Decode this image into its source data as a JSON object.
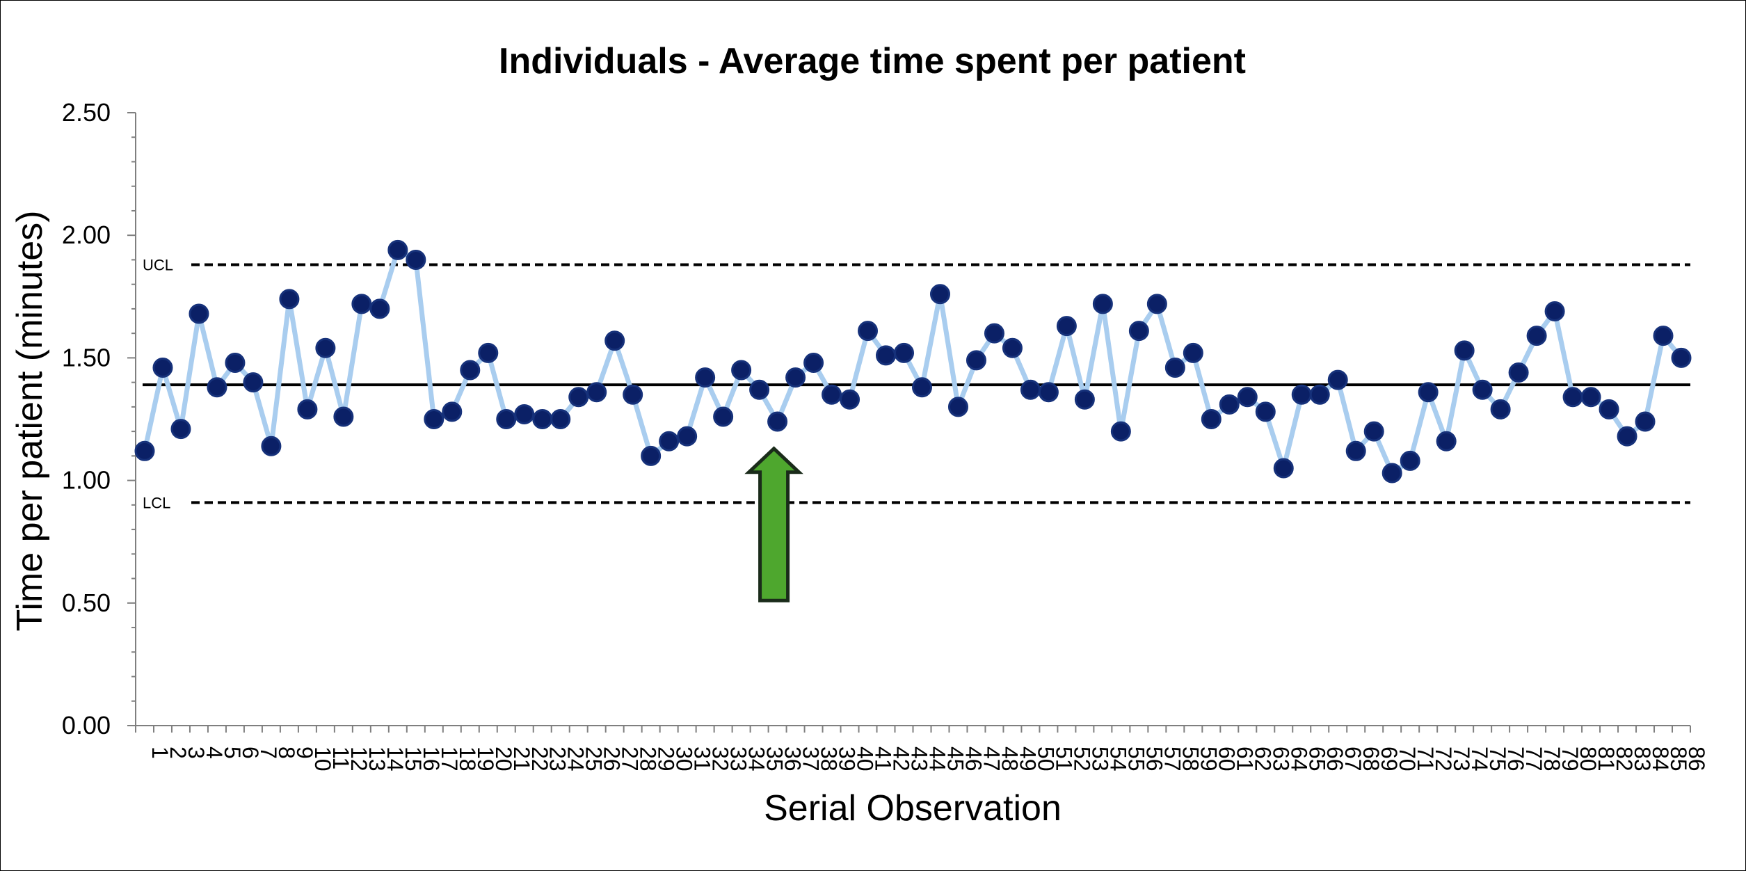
{
  "chart_data": {
    "type": "line",
    "title": "Individuals - Average time spent per patient",
    "xlabel": "Serial Observation",
    "ylabel": "Time per patient (minutes)",
    "ylim": [
      0,
      2.5
    ],
    "yticks": [
      "0.00",
      "0.50",
      "1.00",
      "1.50",
      "2.00",
      "2.50"
    ],
    "grid": false,
    "legend": "none",
    "x": [
      1,
      2,
      3,
      4,
      5,
      6,
      7,
      8,
      9,
      10,
      11,
      12,
      13,
      14,
      15,
      16,
      17,
      18,
      19,
      20,
      21,
      22,
      23,
      24,
      25,
      26,
      27,
      28,
      29,
      30,
      31,
      32,
      33,
      34,
      35,
      36,
      37,
      38,
      39,
      40,
      41,
      42,
      43,
      44,
      45,
      46,
      47,
      48,
      49,
      50,
      51,
      52,
      53,
      54,
      55,
      56,
      57,
      58,
      59,
      60,
      61,
      62,
      63,
      64,
      65,
      66,
      67,
      68,
      69,
      70,
      71,
      72,
      73,
      74,
      75,
      76,
      77,
      78,
      79,
      80,
      81,
      82,
      83,
      84,
      85,
      86
    ],
    "series": [
      {
        "values": [
          1.12,
          1.46,
          1.21,
          1.68,
          1.38,
          1.48,
          1.4,
          1.14,
          1.74,
          1.29,
          1.54,
          1.26,
          1.72,
          1.7,
          1.94,
          1.9,
          1.25,
          1.28,
          1.45,
          1.52,
          1.25,
          1.27,
          1.25,
          1.25,
          1.34,
          1.36,
          1.57,
          1.35,
          1.1,
          1.16,
          1.18,
          1.42,
          1.26,
          1.45,
          1.37,
          1.24,
          1.42,
          1.48,
          1.35,
          1.33,
          1.61,
          1.51,
          1.52,
          1.38,
          1.76,
          1.3,
          1.49,
          1.6,
          1.54,
          1.37,
          1.36,
          1.63,
          1.33,
          1.72,
          1.2,
          1.61,
          1.72,
          1.46,
          1.52,
          1.25,
          1.31,
          1.34,
          1.28,
          1.05,
          1.35,
          1.35,
          1.41,
          1.12,
          1.2,
          1.03,
          1.08,
          1.36,
          1.16,
          1.53,
          1.37,
          1.29,
          1.44,
          1.59,
          1.69,
          1.34,
          1.34,
          1.29,
          1.18,
          1.24,
          1.59,
          1.5
        ]
      }
    ],
    "center_line": 1.39,
    "ucl": {
      "label": "UCL",
      "value": 1.88
    },
    "lcl": {
      "label": "LCL",
      "value": 0.91
    },
    "annotation": {
      "kind": "up-arrow",
      "at_x": 36,
      "from_y": 0.51,
      "to_y": 1.13,
      "color": "#4ea72e"
    },
    "colors": {
      "line": "#a9cdef",
      "marker_fill": "#0b2066",
      "marker_edge": "#16317a",
      "center": "#000000",
      "limits": "#000000"
    }
  }
}
